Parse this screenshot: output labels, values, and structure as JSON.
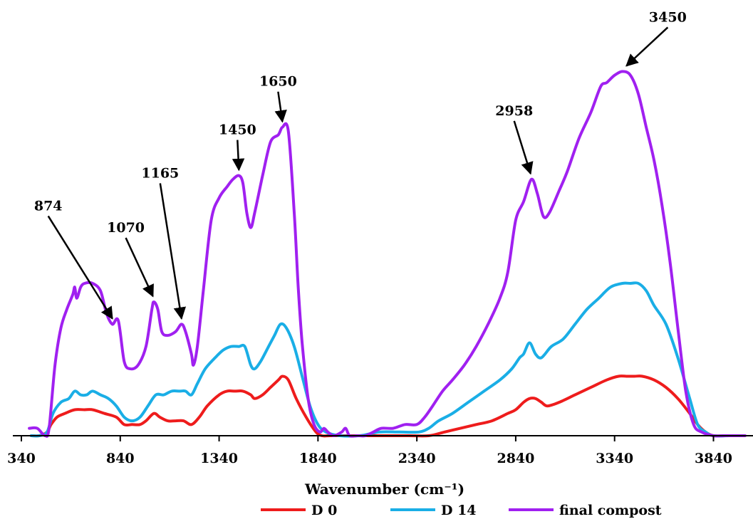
{
  "chart_data": {
    "type": "line",
    "title": "",
    "xlabel": "Wavenumber (cm⁻¹)",
    "ylabel": "",
    "xlim": [
      340,
      4040
    ],
    "ylim": [
      0,
      100
    ],
    "xticks": [
      340,
      840,
      1340,
      1840,
      2340,
      2840,
      3340,
      3840
    ],
    "grid": false,
    "legend_position": "bottom",
    "series": [
      {
        "name": "D 0",
        "color": "#ee1c1c",
        "points": [
          [
            390,
            0
          ],
          [
            430,
            0
          ],
          [
            470,
            1
          ],
          [
            490,
            3
          ],
          [
            520,
            5
          ],
          [
            560,
            6
          ],
          [
            610,
            7
          ],
          [
            660,
            7
          ],
          [
            700,
            7
          ],
          [
            760,
            6
          ],
          [
            820,
            5
          ],
          [
            860,
            3
          ],
          [
            900,
            3
          ],
          [
            940,
            3
          ],
          [
            970,
            4
          ],
          [
            1010,
            6
          ],
          [
            1040,
            5
          ],
          [
            1080,
            4
          ],
          [
            1120,
            4
          ],
          [
            1160,
            4
          ],
          [
            1200,
            3
          ],
          [
            1240,
            5
          ],
          [
            1280,
            8
          ],
          [
            1340,
            11
          ],
          [
            1380,
            12
          ],
          [
            1420,
            12
          ],
          [
            1460,
            12
          ],
          [
            1500,
            11
          ],
          [
            1520,
            10
          ],
          [
            1560,
            11
          ],
          [
            1600,
            13
          ],
          [
            1640,
            15
          ],
          [
            1660,
            16
          ],
          [
            1690,
            15
          ],
          [
            1730,
            10
          ],
          [
            1780,
            5
          ],
          [
            1830,
            1
          ],
          [
            1860,
            0
          ],
          [
            1900,
            0
          ],
          [
            2000,
            0
          ],
          [
            2100,
            0
          ],
          [
            2200,
            0
          ],
          [
            2300,
            0
          ],
          [
            2400,
            0
          ],
          [
            2480,
            1
          ],
          [
            2560,
            2
          ],
          [
            2640,
            3
          ],
          [
            2720,
            4
          ],
          [
            2800,
            6
          ],
          [
            2840,
            7
          ],
          [
            2880,
            9
          ],
          [
            2910,
            10
          ],
          [
            2940,
            10
          ],
          [
            2970,
            9
          ],
          [
            3000,
            8
          ],
          [
            3060,
            9
          ],
          [
            3140,
            11
          ],
          [
            3220,
            13
          ],
          [
            3300,
            15
          ],
          [
            3360,
            16
          ],
          [
            3400,
            16
          ],
          [
            3440,
            16
          ],
          [
            3480,
            16
          ],
          [
            3540,
            15
          ],
          [
            3600,
            13
          ],
          [
            3660,
            10
          ],
          [
            3720,
            6
          ],
          [
            3760,
            3
          ],
          [
            3800,
            1
          ],
          [
            3840,
            0
          ],
          [
            3900,
            0
          ]
        ]
      },
      {
        "name": "D 14",
        "color": "#1aaee6",
        "points": [
          [
            390,
            0
          ],
          [
            430,
            0
          ],
          [
            470,
            1
          ],
          [
            500,
            6
          ],
          [
            540,
            9
          ],
          [
            580,
            10
          ],
          [
            610,
            12
          ],
          [
            640,
            11
          ],
          [
            670,
            11
          ],
          [
            700,
            12
          ],
          [
            740,
            11
          ],
          [
            780,
            10
          ],
          [
            820,
            8
          ],
          [
            860,
            5
          ],
          [
            900,
            4
          ],
          [
            940,
            5
          ],
          [
            980,
            8
          ],
          [
            1020,
            11
          ],
          [
            1060,
            11
          ],
          [
            1100,
            12
          ],
          [
            1140,
            12
          ],
          [
            1170,
            12
          ],
          [
            1200,
            11
          ],
          [
            1230,
            14
          ],
          [
            1270,
            18
          ],
          [
            1320,
            21
          ],
          [
            1360,
            23
          ],
          [
            1400,
            24
          ],
          [
            1440,
            24
          ],
          [
            1470,
            24
          ],
          [
            1500,
            19
          ],
          [
            1520,
            18
          ],
          [
            1550,
            20
          ],
          [
            1590,
            24
          ],
          [
            1620,
            27
          ],
          [
            1650,
            30
          ],
          [
            1680,
            29
          ],
          [
            1720,
            24
          ],
          [
            1760,
            16
          ],
          [
            1800,
            8
          ],
          [
            1840,
            3
          ],
          [
            1880,
            1
          ],
          [
            1950,
            0
          ],
          [
            2050,
            0
          ],
          [
            2150,
            1
          ],
          [
            2250,
            1
          ],
          [
            2350,
            1
          ],
          [
            2400,
            2
          ],
          [
            2450,
            4
          ],
          [
            2520,
            6
          ],
          [
            2600,
            9
          ],
          [
            2680,
            12
          ],
          [
            2760,
            15
          ],
          [
            2820,
            18
          ],
          [
            2860,
            21
          ],
          [
            2880,
            22
          ],
          [
            2910,
            25
          ],
          [
            2940,
            22
          ],
          [
            2970,
            21
          ],
          [
            3020,
            24
          ],
          [
            3080,
            26
          ],
          [
            3140,
            30
          ],
          [
            3200,
            34
          ],
          [
            3260,
            37
          ],
          [
            3320,
            40
          ],
          [
            3380,
            41
          ],
          [
            3420,
            41
          ],
          [
            3460,
            41
          ],
          [
            3500,
            39
          ],
          [
            3540,
            35
          ],
          [
            3600,
            30
          ],
          [
            3660,
            21
          ],
          [
            3720,
            10
          ],
          [
            3760,
            3
          ],
          [
            3800,
            1
          ],
          [
            3840,
            0
          ],
          [
            3920,
            0
          ]
        ]
      },
      {
        "name": "final compost",
        "color": "#a020f0",
        "points": [
          [
            380,
            2
          ],
          [
            420,
            2
          ],
          [
            460,
            0
          ],
          [
            480,
            2
          ],
          [
            510,
            19
          ],
          [
            540,
            29
          ],
          [
            570,
            34
          ],
          [
            600,
            38
          ],
          [
            610,
            40
          ],
          [
            620,
            37
          ],
          [
            640,
            40
          ],
          [
            660,
            41
          ],
          [
            700,
            41
          ],
          [
            740,
            39
          ],
          [
            770,
            33
          ],
          [
            800,
            30
          ],
          [
            830,
            31
          ],
          [
            860,
            20
          ],
          [
            890,
            18
          ],
          [
            930,
            19
          ],
          [
            970,
            24
          ],
          [
            1000,
            34
          ],
          [
            1010,
            36
          ],
          [
            1030,
            34
          ],
          [
            1050,
            28
          ],
          [
            1080,
            27
          ],
          [
            1120,
            28
          ],
          [
            1150,
            30
          ],
          [
            1170,
            28
          ],
          [
            1200,
            22
          ],
          [
            1210,
            19
          ],
          [
            1230,
            24
          ],
          [
            1260,
            39
          ],
          [
            1300,
            58
          ],
          [
            1340,
            64
          ],
          [
            1380,
            67
          ],
          [
            1410,
            69
          ],
          [
            1440,
            70
          ],
          [
            1460,
            68
          ],
          [
            1480,
            60
          ],
          [
            1500,
            56
          ],
          [
            1520,
            60
          ],
          [
            1560,
            70
          ],
          [
            1600,
            79
          ],
          [
            1640,
            81
          ],
          [
            1660,
            83
          ],
          [
            1690,
            82
          ],
          [
            1720,
            60
          ],
          [
            1740,
            40
          ],
          [
            1760,
            25
          ],
          [
            1790,
            10
          ],
          [
            1820,
            3
          ],
          [
            1850,
            1
          ],
          [
            1870,
            2
          ],
          [
            1890,
            1
          ],
          [
            1920,
            0
          ],
          [
            1960,
            1
          ],
          [
            1980,
            2
          ],
          [
            2000,
            0
          ],
          [
            2040,
            0
          ],
          [
            2080,
            0
          ],
          [
            2120,
            1
          ],
          [
            2160,
            2
          ],
          [
            2220,
            2
          ],
          [
            2280,
            3
          ],
          [
            2340,
            3
          ],
          [
            2380,
            5
          ],
          [
            2420,
            8
          ],
          [
            2470,
            12
          ],
          [
            2520,
            15
          ],
          [
            2580,
            19
          ],
          [
            2640,
            24
          ],
          [
            2700,
            30
          ],
          [
            2760,
            37
          ],
          [
            2800,
            44
          ],
          [
            2840,
            58
          ],
          [
            2880,
            63
          ],
          [
            2920,
            69
          ],
          [
            2950,
            65
          ],
          [
            2980,
            59
          ],
          [
            3010,
            60
          ],
          [
            3060,
            66
          ],
          [
            3100,
            71
          ],
          [
            3160,
            80
          ],
          [
            3220,
            87
          ],
          [
            3270,
            94
          ],
          [
            3300,
            95
          ],
          [
            3340,
            97
          ],
          [
            3380,
            98
          ],
          [
            3420,
            97
          ],
          [
            3460,
            92
          ],
          [
            3500,
            83
          ],
          [
            3540,
            74
          ],
          [
            3580,
            62
          ],
          [
            3620,
            47
          ],
          [
            3660,
            29
          ],
          [
            3700,
            12
          ],
          [
            3740,
            3
          ],
          [
            3780,
            1
          ],
          [
            3840,
            0
          ],
          [
            3900,
            0
          ],
          [
            3960,
            0
          ],
          [
            4000,
            0
          ]
        ]
      }
    ],
    "annotations": [
      {
        "label": "874",
        "x": 800,
        "y": 30
      },
      {
        "label": "1070",
        "x": 1005,
        "y": 36
      },
      {
        "label": "1165",
        "x": 1150,
        "y": 30
      },
      {
        "label": "1450",
        "x": 1440,
        "y": 70
      },
      {
        "label": "1650",
        "x": 1660,
        "y": 83
      },
      {
        "label": "2958",
        "x": 2915,
        "y": 69
      },
      {
        "label": "3450",
        "x": 3400,
        "y": 98
      }
    ]
  }
}
